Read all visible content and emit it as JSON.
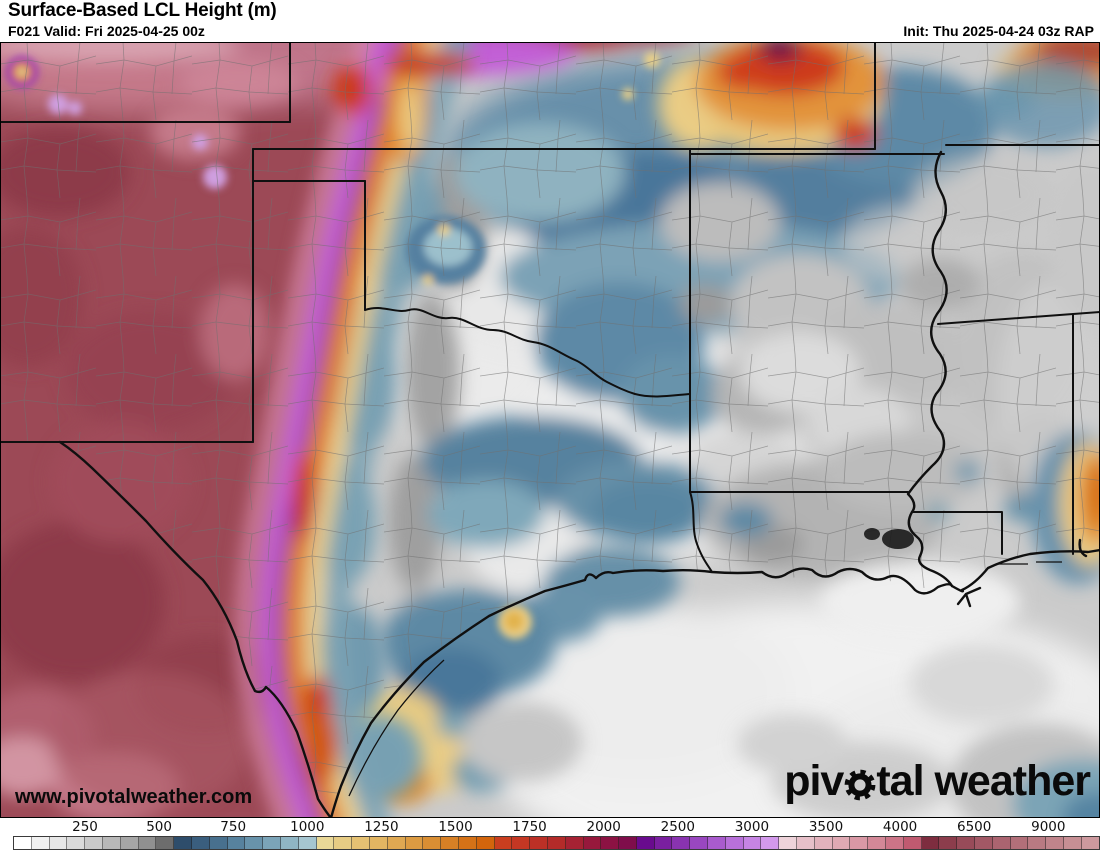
{
  "header": {
    "title": "Surface-Based LCL Height (m)",
    "forecast_label": "F021 Valid: Fri 2025-04-25 00z",
    "init_label": "Init: Thu 2025-04-24 03z RAP"
  },
  "watermarks": {
    "site_url": "www.pivotalweather.com",
    "logo_prefix": "piv",
    "logo_suffix": "tal weather"
  },
  "colorbar": {
    "tick_labels": [
      "250",
      "500",
      "750",
      "1000",
      "1250",
      "1500",
      "1750",
      "2000",
      "2500",
      "3000",
      "3500",
      "4000",
      "6500",
      "9000"
    ],
    "cell_colors": [
      "#ffffff",
      "#f1f1f1",
      "#e7e7e7",
      "#dadada",
      "#cacaca",
      "#b8b8b8",
      "#a6a6a6",
      "#909090",
      "#6d6d6d",
      "#2e4d6b",
      "#3a5e7e",
      "#48708e",
      "#57829e",
      "#6893ab",
      "#7ba4b8",
      "#8fb5c4",
      "#a6c6d1",
      "#ead897",
      "#e7cc84",
      "#e5c173",
      "#e2b562",
      "#dfa852",
      "#dc9b42",
      "#d98e33",
      "#d78025",
      "#d57217",
      "#d3650c",
      "#ca3e1f",
      "#c43723",
      "#bc3026",
      "#b42b29",
      "#a62233",
      "#97183c",
      "#8c1243",
      "#7f0d4b",
      "#690b8e",
      "#7a1fa0",
      "#8933b0",
      "#9947c0",
      "#a95bce",
      "#b870da",
      "#c684e4",
      "#d399ec",
      "#eed3da",
      "#e7c0c9",
      "#e2b2bc",
      "#dfa9b3",
      "#d998a5",
      "#d38897",
      "#cc7487",
      "#c05a70",
      "#7e2d3f",
      "#8c3d4c",
      "#984b59",
      "#a25865",
      "#ab6470",
      "#b26f79",
      "#b97a82",
      "#c0848b",
      "#c78f94",
      "#cd999e"
    ]
  },
  "map_palette": {
    "land_base": "#cbcbcb",
    "high_lcl_maroon": "#9c4856",
    "dryline_magenta": "#c75ed6",
    "dryline_purple": "#7d1f9a",
    "dryline_orange": "#e0781a",
    "dryline_yellow": "#ead086",
    "dryline_pink": "#d887a8",
    "low_lcl_blue": "#6890aa",
    "gulf_white": "#f1f1f1",
    "hotspot_red": "#cd3a1e",
    "hotspot_core": "#6d0d44",
    "county_line": "#6f6f6f",
    "state_line": "#101010"
  }
}
